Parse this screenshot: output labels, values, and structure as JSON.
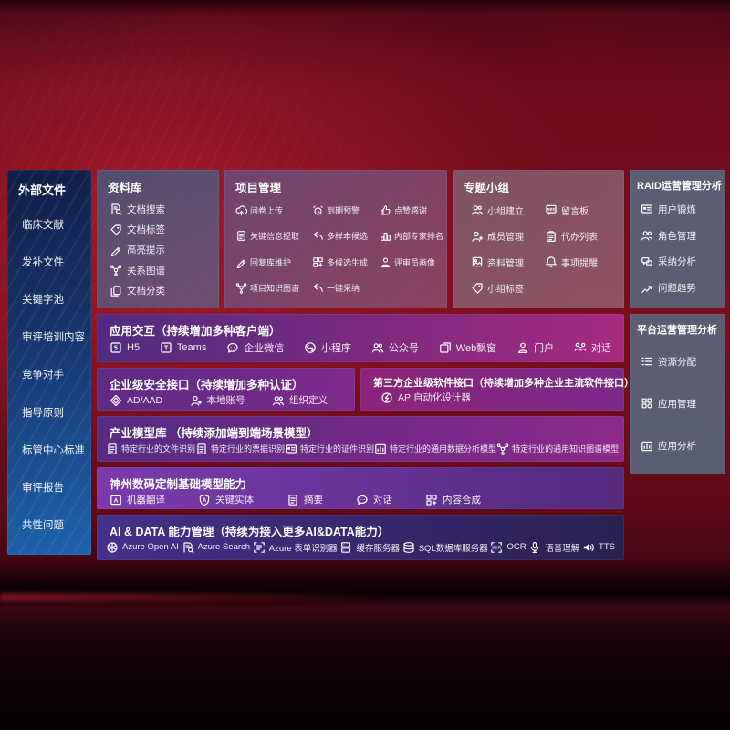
{
  "left_sidebar": {
    "title": "外部文件",
    "items": [
      "临床文献",
      "发补文件",
      "关键字池",
      "审评培训内容",
      "竞争对手",
      "指导原则",
      "标管中心标准",
      "审评报告",
      "共性问题"
    ]
  },
  "top_panels": [
    {
      "title": "资料库",
      "items": [
        {
          "icon": "doc-search",
          "label": "文档搜索"
        },
        {
          "icon": "tag",
          "label": "文档标签"
        },
        {
          "icon": "pen",
          "label": "高亮提示"
        },
        {
          "icon": "network",
          "label": "关系图谱"
        },
        {
          "icon": "doc-copy",
          "label": "文档分类"
        }
      ]
    },
    {
      "title": "项目管理",
      "items": [
        {
          "icon": "cloud-upload",
          "label": "问卷上传"
        },
        {
          "icon": "alarm",
          "label": "到期预警"
        },
        {
          "icon": "thumbs-up",
          "label": "点赞感谢"
        },
        {
          "icon": "doc",
          "label": "关键信息提取"
        },
        {
          "icon": "reply-arrow",
          "label": "多样本候选"
        },
        {
          "icon": "podium",
          "label": "内部专家排名"
        },
        {
          "icon": "pen",
          "label": "回复库维护"
        },
        {
          "icon": "grid-plus",
          "label": "多候选生成"
        },
        {
          "icon": "person",
          "label": "评审员画像"
        },
        {
          "icon": "network",
          "label": "项目知识图谱"
        },
        {
          "icon": "reply-arrow",
          "label": "一键采纳"
        }
      ]
    },
    {
      "title": "专题小组",
      "items": [
        {
          "icon": "people",
          "label": "小组建立"
        },
        {
          "icon": "bbs",
          "label": "留言板"
        },
        {
          "icon": "person-add",
          "label": "成员管理"
        },
        {
          "icon": "clipboard",
          "label": "代办列表"
        },
        {
          "icon": "album",
          "label": "资料管理"
        },
        {
          "icon": "bell",
          "label": "事项提醒"
        },
        {
          "icon": "tag",
          "label": "小组标签"
        }
      ]
    }
  ],
  "right_panels": [
    {
      "title": "RAID运营管理分析",
      "items": [
        {
          "icon": "id-card",
          "label": "用户锻炼"
        },
        {
          "icon": "people",
          "label": "角色管理"
        },
        {
          "icon": "chat-qa",
          "label": "采纳分析"
        },
        {
          "icon": "trend",
          "label": "问题趋势"
        }
      ]
    },
    {
      "title": "平台运营管理分析",
      "items": [
        {
          "icon": "list",
          "label": "资源分配"
        },
        {
          "icon": "app-grid",
          "label": "应用管理"
        },
        {
          "icon": "app-chart",
          "label": "应用分析"
        }
      ]
    }
  ],
  "rows": {
    "app": {
      "title": "应用交互（持续增加多种客户端）",
      "items": [
        {
          "icon": "h5",
          "label": "H5"
        },
        {
          "icon": "teams",
          "label": "Teams"
        },
        {
          "icon": "wechat",
          "label": "企业微信"
        },
        {
          "icon": "mini-program",
          "label": "小程序"
        },
        {
          "icon": "people",
          "label": "公众号"
        },
        {
          "icon": "web-window",
          "label": "Web飘窗"
        },
        {
          "icon": "person",
          "label": "门户"
        },
        {
          "icon": "dialog",
          "label": "对话"
        }
      ]
    },
    "security": {
      "title": "企业级安全接口（持续增加多种认证）",
      "items": [
        {
          "icon": "shield",
          "label": "AD/AAD"
        },
        {
          "icon": "person-add",
          "label": "本地账号"
        },
        {
          "icon": "people",
          "label": "组织定义"
        }
      ]
    },
    "third_party": {
      "title": "第三方企业级软件接口（持续增加多种企业主流软件接口）",
      "items": [
        {
          "icon": "api-gear",
          "label": "API自动化设计器"
        }
      ]
    },
    "industry": {
      "title": "产业模型库 （持续添加端到端场景模型）",
      "items": [
        {
          "icon": "doc",
          "label": "特定行业的文件识别"
        },
        {
          "icon": "doc",
          "label": "特定行业的票据识别"
        },
        {
          "icon": "id-card",
          "label": "特定行业的证件识别"
        },
        {
          "icon": "app-chart",
          "label": "特定行业的通用数据分析模型"
        },
        {
          "icon": "network",
          "label": "特定行业的通用知识图谱模型"
        }
      ]
    },
    "base_models": {
      "title": "神州数码定制基础模型能力",
      "items": [
        {
          "icon": "translate",
          "label": "机器翻译"
        },
        {
          "icon": "entity-shield",
          "label": "关键实体"
        },
        {
          "icon": "doc",
          "label": "摘要"
        },
        {
          "icon": "chat-dots",
          "label": "对话"
        },
        {
          "icon": "grid-plus",
          "label": "内容合成"
        }
      ]
    },
    "ai_data": {
      "title": "AI & DATA 能力管理（持续为接入更多AI&DATA能力）",
      "items": [
        {
          "icon": "openai",
          "label": "Azure Open AI"
        },
        {
          "icon": "doc-search",
          "label": "Azure Search"
        },
        {
          "icon": "form-recognizer",
          "label": "Azure 表单识别器"
        },
        {
          "icon": "server",
          "label": "缓存服务器"
        },
        {
          "icon": "sql-db",
          "label": "SQL数据库服务器"
        },
        {
          "icon": "ocr",
          "label": "OCR"
        },
        {
          "icon": "speech",
          "label": "语音理解"
        },
        {
          "icon": "tts",
          "label": "TTS"
        }
      ]
    }
  },
  "colors": {
    "sidebar_top": "#101d46",
    "sidebar_bottom": "#1e63ad",
    "panel_slate": "rgba(90,99,119,0.95)",
    "panel_library": "rgba(70,86,124,0.85)",
    "panel_project": "rgba(104,76,122,0.85)",
    "panel_group": "rgba(128,94,112,0.85)",
    "row_purple_start": "#4f2b80",
    "row_purple_end": "#a62a80",
    "row_base_start": "#7b3aad",
    "row_base_end": "#542a7e",
    "row_ai_start": "#45308c",
    "row_ai_end": "#2a2050",
    "background_red": "#7c0f1f"
  }
}
